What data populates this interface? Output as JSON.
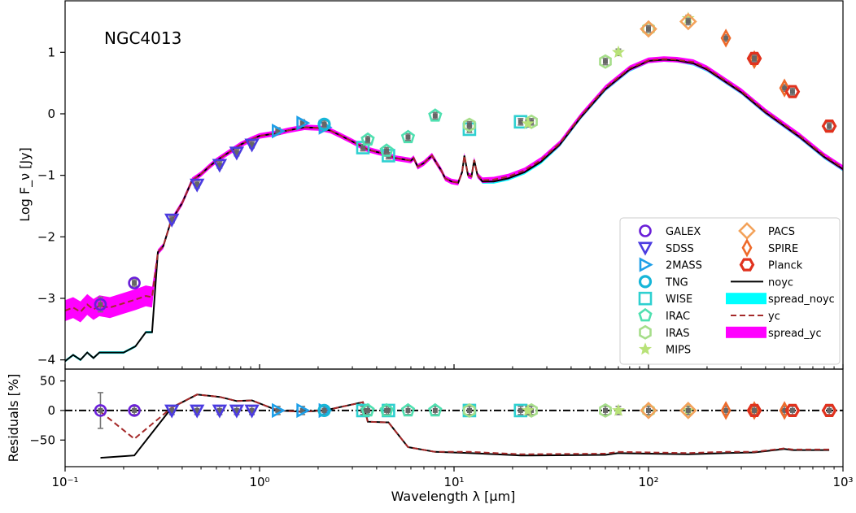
{
  "chart_data": {
    "type": "scatter",
    "title": "NGC4013",
    "xlabel": "Wavelength λ [μm]",
    "x_scale": "log",
    "xlim": [
      0.1,
      1000
    ],
    "x_tick_labels": [
      "10⁻¹",
      "10⁰",
      "10¹",
      "10²",
      "10³"
    ],
    "top_panel": {
      "ylabel": "Log F_ν [Jy]",
      "ylim": [
        -4.15,
        1.85
      ],
      "y_ticks": [
        -4,
        -3,
        -2,
        -1,
        0,
        1
      ],
      "y_tick_labels": [
        "−4",
        "−3",
        "−2",
        "−1",
        "0",
        "1"
      ]
    },
    "bottom_panel": {
      "ylabel": "Residuals [%]",
      "ylim": [
        -95,
        70
      ],
      "y_ticks": [
        -50,
        0,
        50
      ],
      "y_tick_labels": [
        "−50",
        "0",
        "50"
      ],
      "reference_line": 0
    },
    "legend_position": "lower-right",
    "colors": {
      "GALEX": "#6a1fd8",
      "SDSS": "#4b3be0",
      "2MASS": "#1e9fe8",
      "TNG": "#16b6d8",
      "WISE": "#2ed0d0",
      "IRAC": "#4fe0b0",
      "IRAS": "#a6de8a",
      "MIPS": "#b8e278",
      "PACS": "#f3a25a",
      "SPIRE": "#ee6a2a",
      "Planck": "#e0321e",
      "noyc": "#000000",
      "spread_noyc": "#00ffff",
      "yc": "#a52a2a",
      "spread_yc": "#ff00ff"
    },
    "series": [
      {
        "name": "GALEX",
        "marker": "circle",
        "x": [
          0.152,
          0.227
        ],
        "y": [
          -3.1,
          -2.75
        ],
        "residual": [
          0,
          0
        ]
      },
      {
        "name": "SDSS",
        "marker": "triangle-down",
        "x": [
          0.354,
          0.477,
          0.623,
          0.763,
          0.913
        ],
        "y": [
          -1.72,
          -1.15,
          -0.83,
          -0.63,
          -0.5
        ],
        "residual": [
          0,
          0,
          0,
          0,
          0
        ]
      },
      {
        "name": "2MASS",
        "marker": "triangle-right",
        "x": [
          1.24,
          1.66,
          2.16
        ],
        "y": [
          -0.28,
          -0.15,
          -0.22
        ],
        "residual": [
          0,
          0,
          0
        ]
      },
      {
        "name": "TNG",
        "marker": "circle-thick",
        "x": [
          2.15
        ],
        "y": [
          -0.17
        ],
        "residual": [
          0
        ]
      },
      {
        "name": "WISE",
        "marker": "square",
        "x": [
          3.4,
          4.6,
          12,
          22
        ],
        "y": [
          -0.55,
          -0.68,
          -0.25,
          -0.13
        ],
        "residual": [
          0,
          0,
          0,
          0
        ]
      },
      {
        "name": "IRAC",
        "marker": "pentagon",
        "x": [
          3.6,
          4.5,
          5.8,
          8.0
        ],
        "y": [
          -0.42,
          -0.6,
          -0.38,
          -0.03
        ],
        "residual": [
          0,
          0,
          0,
          0
        ]
      },
      {
        "name": "IRAS",
        "marker": "hexagon",
        "x": [
          12,
          25,
          60,
          100
        ],
        "y": [
          -0.18,
          -0.13,
          0.85,
          1.38
        ],
        "residual": [
          0,
          0,
          0,
          0
        ]
      },
      {
        "name": "MIPS",
        "marker": "star",
        "x": [
          24,
          70,
          160
        ],
        "y": [
          -0.16,
          1.0,
          1.55
        ],
        "residual": [
          0,
          0,
          0
        ]
      },
      {
        "name": "PACS",
        "marker": "diamond",
        "x": [
          100,
          160
        ],
        "y": [
          1.38,
          1.5
        ],
        "residual": [
          0,
          0
        ]
      },
      {
        "name": "SPIRE",
        "marker": "thin-diamond",
        "x": [
          250,
          350,
          500
        ],
        "y": [
          1.23,
          0.88,
          0.42
        ],
        "residual": [
          0,
          0,
          0
        ]
      },
      {
        "name": "Planck",
        "marker": "hexagon-thick",
        "x": [
          350,
          550,
          850
        ],
        "y": [
          0.9,
          0.36,
          -0.2
        ],
        "residual": [
          0,
          0,
          0
        ]
      }
    ],
    "models": [
      {
        "name": "noyc",
        "style": "solid",
        "x": [
          0.1,
          0.11,
          0.12,
          0.13,
          0.14,
          0.15,
          0.17,
          0.2,
          0.23,
          0.26,
          0.28,
          0.3,
          0.32,
          0.35,
          0.4,
          0.45,
          0.5,
          0.55,
          0.6,
          0.7,
          0.8,
          0.9,
          1.0,
          1.2,
          1.4,
          1.7,
          2.0,
          2.3,
          2.6,
          3.0,
          3.3,
          3.6,
          4.0,
          4.5,
          5.0,
          5.5,
          6.0,
          6.2,
          6.5,
          7.0,
          7.7,
          8.2,
          8.6,
          9.0,
          9.7,
          10.5,
          11.0,
          11.3,
          11.8,
          12.3,
          12.7,
          13.2,
          14,
          16,
          19,
          23,
          28,
          35,
          45,
          60,
          80,
          100,
          120,
          140,
          170,
          200,
          300,
          400,
          600,
          800,
          1000
        ],
        "y": [
          -4.02,
          -3.92,
          -4.0,
          -3.88,
          -3.97,
          -3.88,
          -3.88,
          -3.88,
          -3.78,
          -3.55,
          -3.55,
          -2.25,
          -2.15,
          -1.75,
          -1.45,
          -1.08,
          -0.98,
          -0.86,
          -0.76,
          -0.62,
          -0.5,
          -0.42,
          -0.36,
          -0.32,
          -0.27,
          -0.22,
          -0.23,
          -0.27,
          -0.35,
          -0.45,
          -0.52,
          -0.58,
          -0.62,
          -0.66,
          -0.72,
          -0.74,
          -0.76,
          -0.72,
          -0.86,
          -0.8,
          -0.68,
          -0.82,
          -0.92,
          -1.05,
          -1.1,
          -1.12,
          -0.95,
          -0.68,
          -1.0,
          -1.02,
          -0.75,
          -1.0,
          -1.1,
          -1.1,
          -1.05,
          -0.95,
          -0.78,
          -0.5,
          -0.05,
          0.4,
          0.72,
          0.86,
          0.88,
          0.87,
          0.82,
          0.72,
          0.35,
          0.02,
          -0.38,
          -0.7,
          -0.9
        ]
      },
      {
        "name": "spread_noyc",
        "style": "band"
      },
      {
        "name": "yc",
        "style": "dashed",
        "x": [
          0.1,
          0.11,
          0.12,
          0.13,
          0.14,
          0.15,
          0.17,
          0.2,
          0.23,
          0.26,
          0.28,
          0.3,
          0.32,
          0.35,
          0.4,
          0.45,
          0.5,
          0.55,
          0.6,
          0.7,
          0.8,
          0.9,
          1.0,
          1.2,
          1.4,
          1.7,
          2.0,
          2.3,
          2.6,
          3.0,
          3.3,
          3.6,
          4.0,
          4.5,
          5.0,
          5.5,
          6.0,
          6.2,
          6.5,
          7.0,
          7.7,
          8.2,
          8.6,
          9.0,
          9.7,
          10.5,
          11.0,
          11.3,
          11.8,
          12.3,
          12.7,
          13.2,
          14,
          16,
          19,
          23,
          28,
          35,
          45,
          60,
          80,
          100,
          120,
          140,
          170,
          200,
          300,
          400,
          600,
          800,
          1000
        ],
        "y": [
          -3.2,
          -3.15,
          -3.22,
          -3.1,
          -3.18,
          -3.12,
          -3.15,
          -3.08,
          -3.02,
          -2.96,
          -2.98,
          -2.25,
          -2.15,
          -1.75,
          -1.45,
          -1.08,
          -0.98,
          -0.86,
          -0.76,
          -0.62,
          -0.5,
          -0.42,
          -0.36,
          -0.32,
          -0.27,
          -0.22,
          -0.23,
          -0.27,
          -0.35,
          -0.45,
          -0.52,
          -0.58,
          -0.62,
          -0.66,
          -0.72,
          -0.74,
          -0.76,
          -0.72,
          -0.86,
          -0.8,
          -0.68,
          -0.82,
          -0.92,
          -1.05,
          -1.1,
          -1.12,
          -0.95,
          -0.68,
          -1.0,
          -1.02,
          -0.75,
          -1.0,
          -1.08,
          -1.07,
          -1.02,
          -0.92,
          -0.75,
          -0.48,
          -0.03,
          0.42,
          0.74,
          0.87,
          0.89,
          0.88,
          0.84,
          0.74,
          0.37,
          0.04,
          -0.36,
          -0.68,
          -0.88
        ]
      },
      {
        "name": "spread_yc",
        "style": "band"
      }
    ],
    "residual_curves": [
      {
        "name": "noyc",
        "style": "solid",
        "x": [
          0.152,
          0.227,
          0.354,
          0.477,
          0.623,
          0.763,
          0.913,
          1.24,
          1.66,
          2.16,
          3.4,
          3.6,
          4.5,
          4.6,
          5.8,
          8.0,
          12,
          22,
          25,
          60,
          70,
          100,
          160,
          250,
          350,
          500,
          550,
          850
        ],
        "y": [
          -80,
          -76,
          5,
          27,
          23,
          16,
          17,
          0,
          -2,
          0,
          14,
          -19,
          -20,
          -20,
          -62,
          -70,
          -72,
          -76,
          -76,
          -75,
          -72,
          -73,
          -74,
          -72,
          -71,
          -65,
          -67,
          -67
        ]
      },
      {
        "name": "yc",
        "style": "dashed",
        "x": [
          0.152,
          0.227,
          0.354,
          0.477,
          0.623,
          0.763,
          0.913,
          1.24,
          1.66,
          2.16,
          3.4,
          3.6,
          4.5,
          4.6,
          5.8,
          8.0,
          12,
          22,
          25,
          60,
          70,
          100,
          160,
          250,
          350,
          500,
          550,
          850
        ],
        "y": [
          -2,
          -48,
          5,
          27,
          23,
          16,
          17,
          0,
          -2,
          0,
          14,
          -19,
          -20,
          -20,
          -62,
          -70,
          -70,
          -74,
          -74,
          -73,
          -70,
          -71,
          -72,
          -70,
          -70,
          -64,
          -66,
          -66
        ]
      }
    ]
  }
}
